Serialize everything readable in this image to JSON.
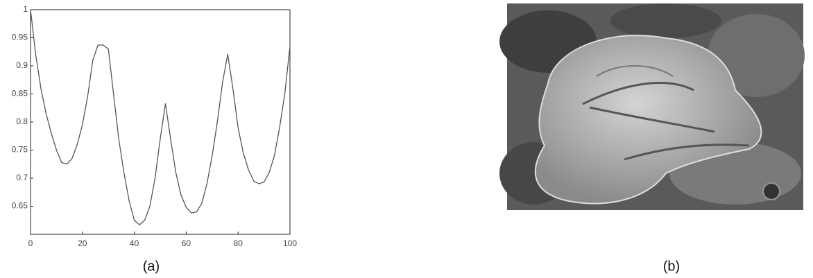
{
  "chart_data": {
    "type": "line",
    "x": [
      0,
      2,
      4,
      6,
      8,
      10,
      12,
      14,
      16,
      18,
      20,
      22,
      24,
      26,
      28,
      30,
      32,
      34,
      36,
      38,
      40,
      42,
      44,
      46,
      48,
      50,
      52,
      54,
      56,
      58,
      60,
      62,
      64,
      66,
      68,
      70,
      72,
      74,
      76,
      78,
      80,
      82,
      84,
      86,
      88,
      90,
      92,
      94,
      96,
      98,
      100
    ],
    "values": [
      1.0,
      0.92,
      0.86,
      0.815,
      0.78,
      0.75,
      0.728,
      0.725,
      0.735,
      0.76,
      0.795,
      0.845,
      0.91,
      0.937,
      0.937,
      0.93,
      0.85,
      0.77,
      0.71,
      0.66,
      0.625,
      0.617,
      0.625,
      0.65,
      0.7,
      0.77,
      0.833,
      0.77,
      0.71,
      0.67,
      0.648,
      0.638,
      0.64,
      0.655,
      0.69,
      0.74,
      0.8,
      0.87,
      0.921,
      0.86,
      0.79,
      0.745,
      0.715,
      0.695,
      0.69,
      0.693,
      0.71,
      0.74,
      0.79,
      0.85,
      0.935
    ],
    "color": "#555555",
    "xlim": [
      0,
      100
    ],
    "ylim": [
      0.6,
      1
    ],
    "xticks": [
      0,
      20,
      40,
      60,
      80,
      100
    ],
    "yticks": [
      0.65,
      0.7,
      0.75,
      0.8,
      0.85,
      0.9,
      0.95,
      1
    ]
  },
  "captions": [
    "(a)",
    "(b)"
  ]
}
